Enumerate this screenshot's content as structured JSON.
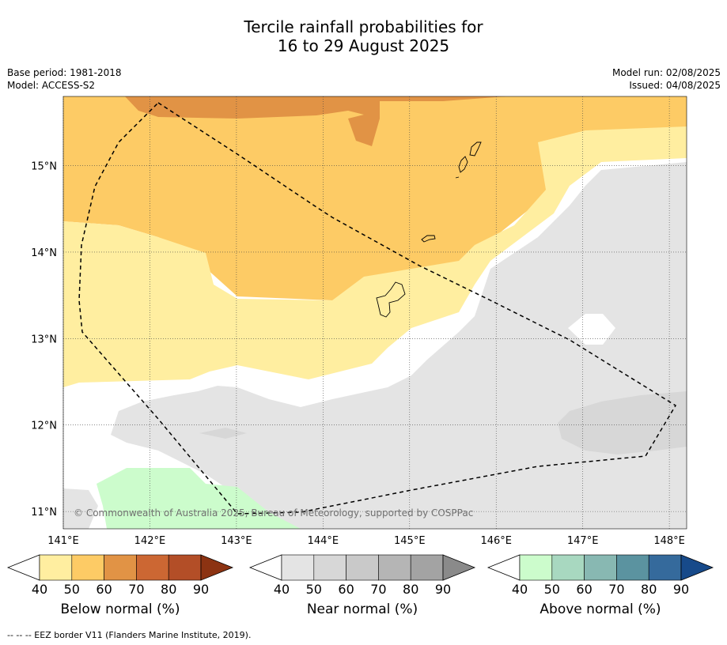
{
  "title": {
    "line1": "Tercile rainfall probabilities for",
    "line2": "16 to 29 August 2025"
  },
  "meta": {
    "base_period": "Base period: 1981-2018",
    "model": "Model: ACCESS-S2",
    "model_run": "Model run: 02/08/2025",
    "issued": "Issued: 04/08/2025"
  },
  "map": {
    "lon_range": [
      141.0,
      148.2
    ],
    "lat_range": [
      10.8,
      15.8
    ],
    "lon_ticks": [
      "141°E",
      "142°E",
      "143°E",
      "144°E",
      "145°E",
      "146°E",
      "147°E",
      "148°E"
    ],
    "lat_ticks": [
      "15°N",
      "14°N",
      "13°N",
      "12°N",
      "11°N"
    ],
    "grid": true,
    "copyright": "© Commonwealth of Australia 2025, Bureau of Meteorology, supported by COSPPac"
  },
  "colorbars": [
    {
      "name": "below",
      "label": "Below normal (%)",
      "colors": [
        "#ffeea0",
        "#fdcb65",
        "#e19345",
        "#cc6733",
        "#b34e27",
        "#8c3312"
      ],
      "ticks": [
        "40",
        "50",
        "60",
        "70",
        "80",
        "90"
      ]
    },
    {
      "name": "near",
      "label": "Near normal (%)",
      "colors": [
        "#e4e4e4",
        "#d7d7d7",
        "#c9c9c9",
        "#b5b5b5",
        "#a3a3a3",
        "#8a8a8a"
      ],
      "ticks": [
        "40",
        "50",
        "60",
        "70",
        "80",
        "90"
      ]
    },
    {
      "name": "above",
      "label": "Above normal (%)",
      "colors": [
        "#ccfccc",
        "#a8d8c0",
        "#88b8b2",
        "#5b93a0",
        "#356a9c",
        "#174a8a"
      ],
      "ticks": [
        "40",
        "50",
        "60",
        "70",
        "80",
        "90"
      ]
    }
  ],
  "footnote": "--  --  -- EEZ border V11 (Flanders Marine Institute, 2019)."
}
